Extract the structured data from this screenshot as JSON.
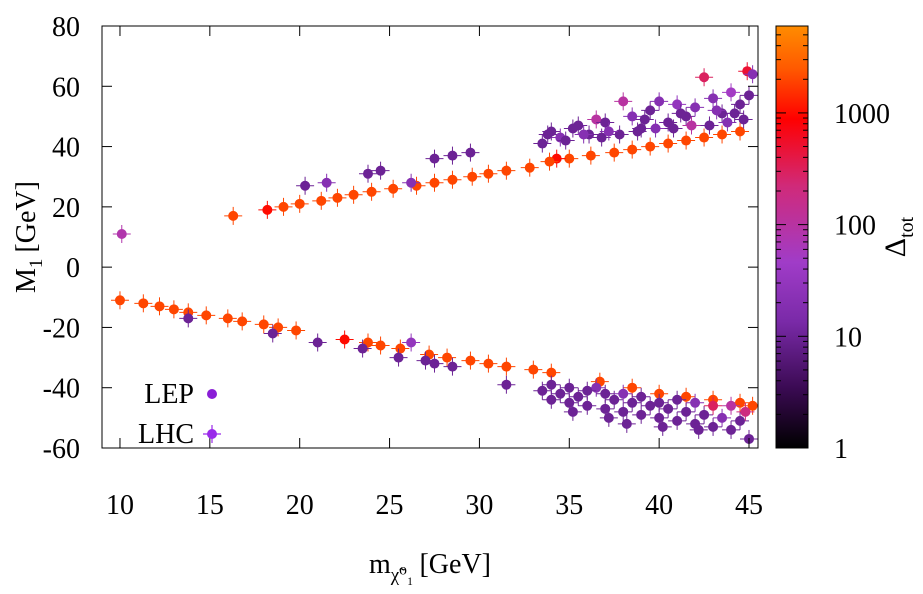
{
  "chart_data": {
    "type": "scatter",
    "title": "",
    "xlabel": "m",
    "xlabel_sub": "χ̃⁰₁",
    "xlabel_unit": "[GeV]",
    "ylabel": "M",
    "ylabel_sub": "1",
    "ylabel_unit": "[GeV]",
    "xlim": [
      9,
      45.5
    ],
    "ylim": [
      -60,
      80
    ],
    "xticks": [
      10,
      15,
      20,
      25,
      30,
      35,
      40,
      45
    ],
    "yticks": [
      -60,
      -40,
      -20,
      0,
      20,
      40,
      60,
      80
    ],
    "colorbar": {
      "label": "Δ",
      "label_sub": "tot",
      "scale": "log",
      "range": [
        1,
        6000
      ],
      "ticks": [
        1,
        10,
        100,
        1000
      ],
      "colors": [
        "#000000",
        "#3a0a52",
        "#7a2aa8",
        "#a03cc8",
        "#d02a7a",
        "#ff0000",
        "#ff5a00",
        "#ff8c00"
      ]
    },
    "legend": {
      "position": "bottom-left",
      "entries": [
        {
          "label": "LEP",
          "color": "#8a1ed6"
        },
        {
          "label": "LHC",
          "color": "#9a2aea"
        }
      ]
    },
    "series": [
      {
        "name": "upper-branch-line",
        "points": [
          [
            16.3,
            17,
            2000
          ],
          [
            18.2,
            19,
            1000
          ],
          [
            19.1,
            20,
            2000
          ],
          [
            20,
            21,
            2000
          ],
          [
            21.2,
            22,
            2000
          ],
          [
            22.1,
            23,
            2000
          ],
          [
            23,
            24,
            2000
          ],
          [
            24,
            25,
            2000
          ],
          [
            25.2,
            26,
            2000
          ],
          [
            26.5,
            27,
            2000
          ],
          [
            27.5,
            28,
            2000
          ],
          [
            28.5,
            29,
            2000
          ],
          [
            29.6,
            30,
            2000
          ],
          [
            30.5,
            31,
            2000
          ],
          [
            31.5,
            32,
            2000
          ],
          [
            32.8,
            33,
            2000
          ],
          [
            35,
            36,
            2000
          ],
          [
            36.2,
            37,
            2000
          ],
          [
            37.5,
            38,
            2000
          ],
          [
            38.5,
            39,
            2000
          ],
          [
            39.5,
            40,
            2000
          ],
          [
            40.5,
            41,
            2000
          ],
          [
            41.5,
            42,
            2000
          ],
          [
            42.5,
            43,
            2000
          ],
          [
            43.5,
            44,
            2000
          ],
          [
            44.5,
            45,
            2000
          ],
          [
            34.3,
            36,
            1000
          ],
          [
            33.9,
            35,
            2000
          ]
        ]
      },
      {
        "name": "upper-branch-scatter",
        "points": [
          [
            10.1,
            11,
            80
          ],
          [
            20.3,
            27,
            10
          ],
          [
            21.5,
            28,
            20
          ],
          [
            23.8,
            31,
            10
          ],
          [
            24.5,
            32,
            10
          ],
          [
            26.2,
            28,
            20
          ],
          [
            27.5,
            36,
            10
          ],
          [
            28.5,
            37,
            10
          ],
          [
            29.5,
            38,
            10
          ],
          [
            33.5,
            41,
            10
          ],
          [
            34,
            45,
            10
          ],
          [
            34.5,
            43,
            20
          ],
          [
            35.5,
            47,
            10
          ],
          [
            36.1,
            44,
            10
          ],
          [
            36.5,
            49,
            100
          ],
          [
            37,
            48,
            10
          ],
          [
            38,
            55,
            100
          ],
          [
            38.5,
            50,
            20
          ],
          [
            39,
            46,
            10
          ],
          [
            39.5,
            52,
            10
          ],
          [
            40,
            55,
            20
          ],
          [
            40.5,
            48,
            10
          ],
          [
            41,
            54,
            30
          ],
          [
            41.5,
            50,
            10
          ],
          [
            42,
            53,
            20
          ],
          [
            42.5,
            63,
            300
          ],
          [
            43,
            56,
            20
          ],
          [
            43.5,
            51,
            10
          ],
          [
            44,
            58,
            50
          ],
          [
            44.5,
            54,
            10
          ],
          [
            44.9,
            65,
            500
          ],
          [
            45.2,
            64,
            20
          ],
          [
            44.7,
            49,
            10
          ],
          [
            43.8,
            48,
            20
          ],
          [
            42.8,
            47,
            10
          ],
          [
            41.8,
            47,
            100
          ],
          [
            40.8,
            46,
            10
          ],
          [
            39.8,
            46,
            20
          ],
          [
            38.8,
            45,
            10
          ],
          [
            37.8,
            44,
            10
          ],
          [
            36.8,
            43,
            10
          ],
          [
            35.8,
            44,
            20
          ],
          [
            34.8,
            42,
            10
          ],
          [
            33.8,
            44,
            10
          ],
          [
            35.2,
            46,
            10
          ],
          [
            37.2,
            45,
            20
          ],
          [
            39.2,
            49,
            10
          ],
          [
            41.2,
            51,
            10
          ],
          [
            43.2,
            52,
            20
          ],
          [
            44.2,
            51,
            10
          ],
          [
            45,
            57,
            10
          ]
        ]
      },
      {
        "name": "lower-branch-line",
        "points": [
          [
            10,
            -11,
            2000
          ],
          [
            11.3,
            -12,
            2000
          ],
          [
            12.2,
            -13,
            2000
          ],
          [
            13,
            -14,
            2000
          ],
          [
            13.8,
            -15,
            2000
          ],
          [
            14.8,
            -16,
            2000
          ],
          [
            16,
            -17,
            2000
          ],
          [
            16.8,
            -18,
            2000
          ],
          [
            18,
            -19,
            2000
          ],
          [
            18.8,
            -20,
            2000
          ],
          [
            19.8,
            -21,
            2000
          ],
          [
            22.5,
            -24,
            1000
          ],
          [
            23.8,
            -25,
            2000
          ],
          [
            24.5,
            -26,
            2000
          ],
          [
            25.6,
            -27,
            2000
          ],
          [
            27.2,
            -29,
            2000
          ],
          [
            28.2,
            -30,
            2000
          ],
          [
            29.5,
            -31,
            2000
          ],
          [
            30.5,
            -32,
            2000
          ],
          [
            31.5,
            -33,
            2000
          ],
          [
            33,
            -34,
            2000
          ],
          [
            34,
            -35,
            2000
          ],
          [
            36.7,
            -38,
            2000
          ],
          [
            38.5,
            -40,
            2000
          ],
          [
            40,
            -42,
            2000
          ],
          [
            41.5,
            -43,
            2000
          ],
          [
            43,
            -44,
            2000
          ],
          [
            44.5,
            -45,
            2000
          ],
          [
            45.2,
            -46,
            2000
          ]
        ]
      },
      {
        "name": "lower-branch-scatter",
        "points": [
          [
            13.8,
            -17,
            10
          ],
          [
            18.5,
            -22,
            10
          ],
          [
            21,
            -25,
            10
          ],
          [
            23.5,
            -27,
            10
          ],
          [
            25.5,
            -30,
            10
          ],
          [
            26.2,
            -25,
            30
          ],
          [
            27,
            -31,
            10
          ],
          [
            27.5,
            -32,
            10
          ],
          [
            28.5,
            -33,
            10
          ],
          [
            31.5,
            -39,
            10
          ],
          [
            33.5,
            -41,
            10
          ],
          [
            34,
            -44,
            10
          ],
          [
            34.5,
            -42,
            10
          ],
          [
            35,
            -45,
            10
          ],
          [
            35.5,
            -43,
            10
          ],
          [
            36,
            -46,
            10
          ],
          [
            36.5,
            -40,
            20
          ],
          [
            37,
            -47,
            10
          ],
          [
            37.5,
            -44,
            10
          ],
          [
            38,
            -48,
            10
          ],
          [
            38.5,
            -45,
            10
          ],
          [
            39,
            -49,
            10
          ],
          [
            39.5,
            -46,
            10
          ],
          [
            40,
            -50,
            10
          ],
          [
            40.5,
            -47,
            10
          ],
          [
            41,
            -51,
            10
          ],
          [
            41.5,
            -48,
            10
          ],
          [
            42,
            -52,
            10
          ],
          [
            42.5,
            -49,
            10
          ],
          [
            43,
            -53,
            10
          ],
          [
            43.5,
            -50,
            20
          ],
          [
            44,
            -54,
            10
          ],
          [
            44.5,
            -51,
            10
          ],
          [
            45,
            -57,
            10
          ],
          [
            44.8,
            -48,
            200
          ],
          [
            44,
            -46,
            100
          ],
          [
            43,
            -46,
            300
          ],
          [
            42,
            -45,
            20
          ],
          [
            41,
            -44,
            10
          ],
          [
            40,
            -45,
            10
          ],
          [
            39,
            -43,
            10
          ],
          [
            38,
            -42,
            20
          ],
          [
            37,
            -42,
            10
          ],
          [
            36,
            -41,
            10
          ],
          [
            35,
            -40,
            10
          ],
          [
            34,
            -39,
            10
          ],
          [
            38.2,
            -52,
            10
          ],
          [
            40.2,
            -53,
            10
          ],
          [
            42.2,
            -54,
            10
          ],
          [
            35.2,
            -48,
            10
          ],
          [
            37.2,
            -50,
            10
          ]
        ]
      }
    ]
  }
}
